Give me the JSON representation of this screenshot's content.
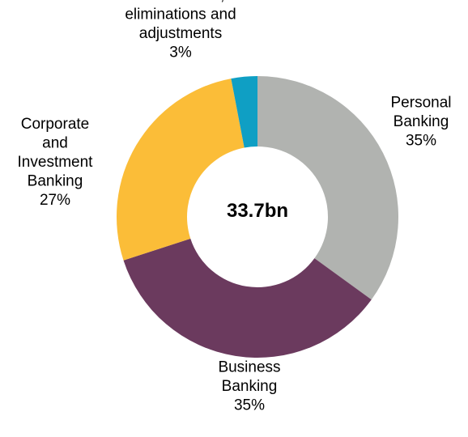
{
  "chart_data": {
    "type": "pie",
    "center_label": "33.7bn",
    "categories": [
      "Personal Banking",
      "Business Banking",
      "Corporate and Investment Banking",
      "Subsidiaries, eliminations and adjustments"
    ],
    "values": [
      35,
      35,
      27,
      3
    ],
    "value_labels": [
      "35%",
      "35%",
      "27%",
      "3%"
    ],
    "label_lines": [
      [
        "Personal",
        "Banking",
        "35%"
      ],
      [
        "Business",
        "Banking",
        "35%"
      ],
      [
        "Corporate",
        "and",
        "Investment",
        "Banking",
        "27%"
      ],
      [
        "Subsidiaries,",
        "eliminations and",
        "adjustments",
        "3%"
      ]
    ],
    "colors": [
      "#b1b3b0",
      "#6b3a5e",
      "#fbbd38",
      "#0f9fc4"
    ],
    "start_angle": "top",
    "direction": "clockwise",
    "hole": "donut"
  }
}
